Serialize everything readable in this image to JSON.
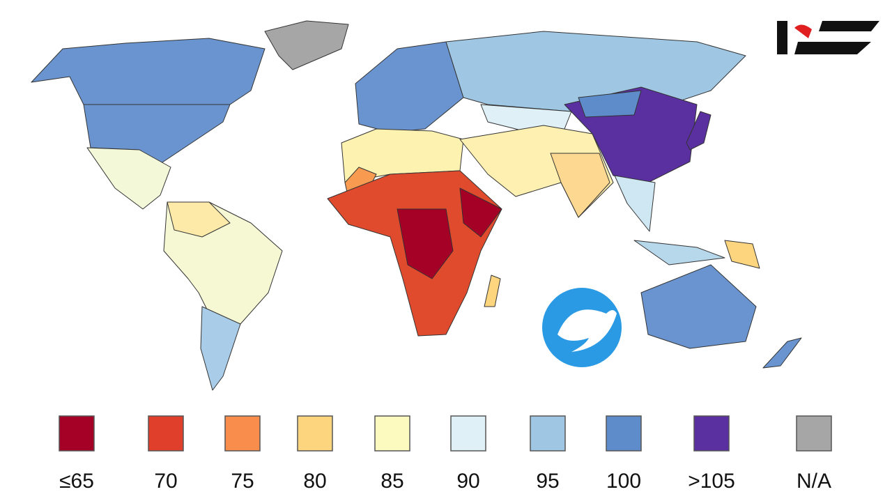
{
  "legend": {
    "items": [
      {
        "label": "≤65",
        "color": "#a50026"
      },
      {
        "label": "70",
        "color": "#e0402b"
      },
      {
        "label": "75",
        "color": "#f88d4c"
      },
      {
        "label": "80",
        "color": "#fdd57e"
      },
      {
        "label": "85",
        "color": "#fdfac0"
      },
      {
        "label": "90",
        "color": "#dff1f7"
      },
      {
        "label": "95",
        "color": "#9fc7e4"
      },
      {
        "label": "100",
        "color": "#5e8bca"
      },
      {
        "label": ">105",
        "color": "#5a2fa0"
      },
      {
        "label": "N/A",
        "color": "#a6a6a6"
      }
    ]
  }
}
